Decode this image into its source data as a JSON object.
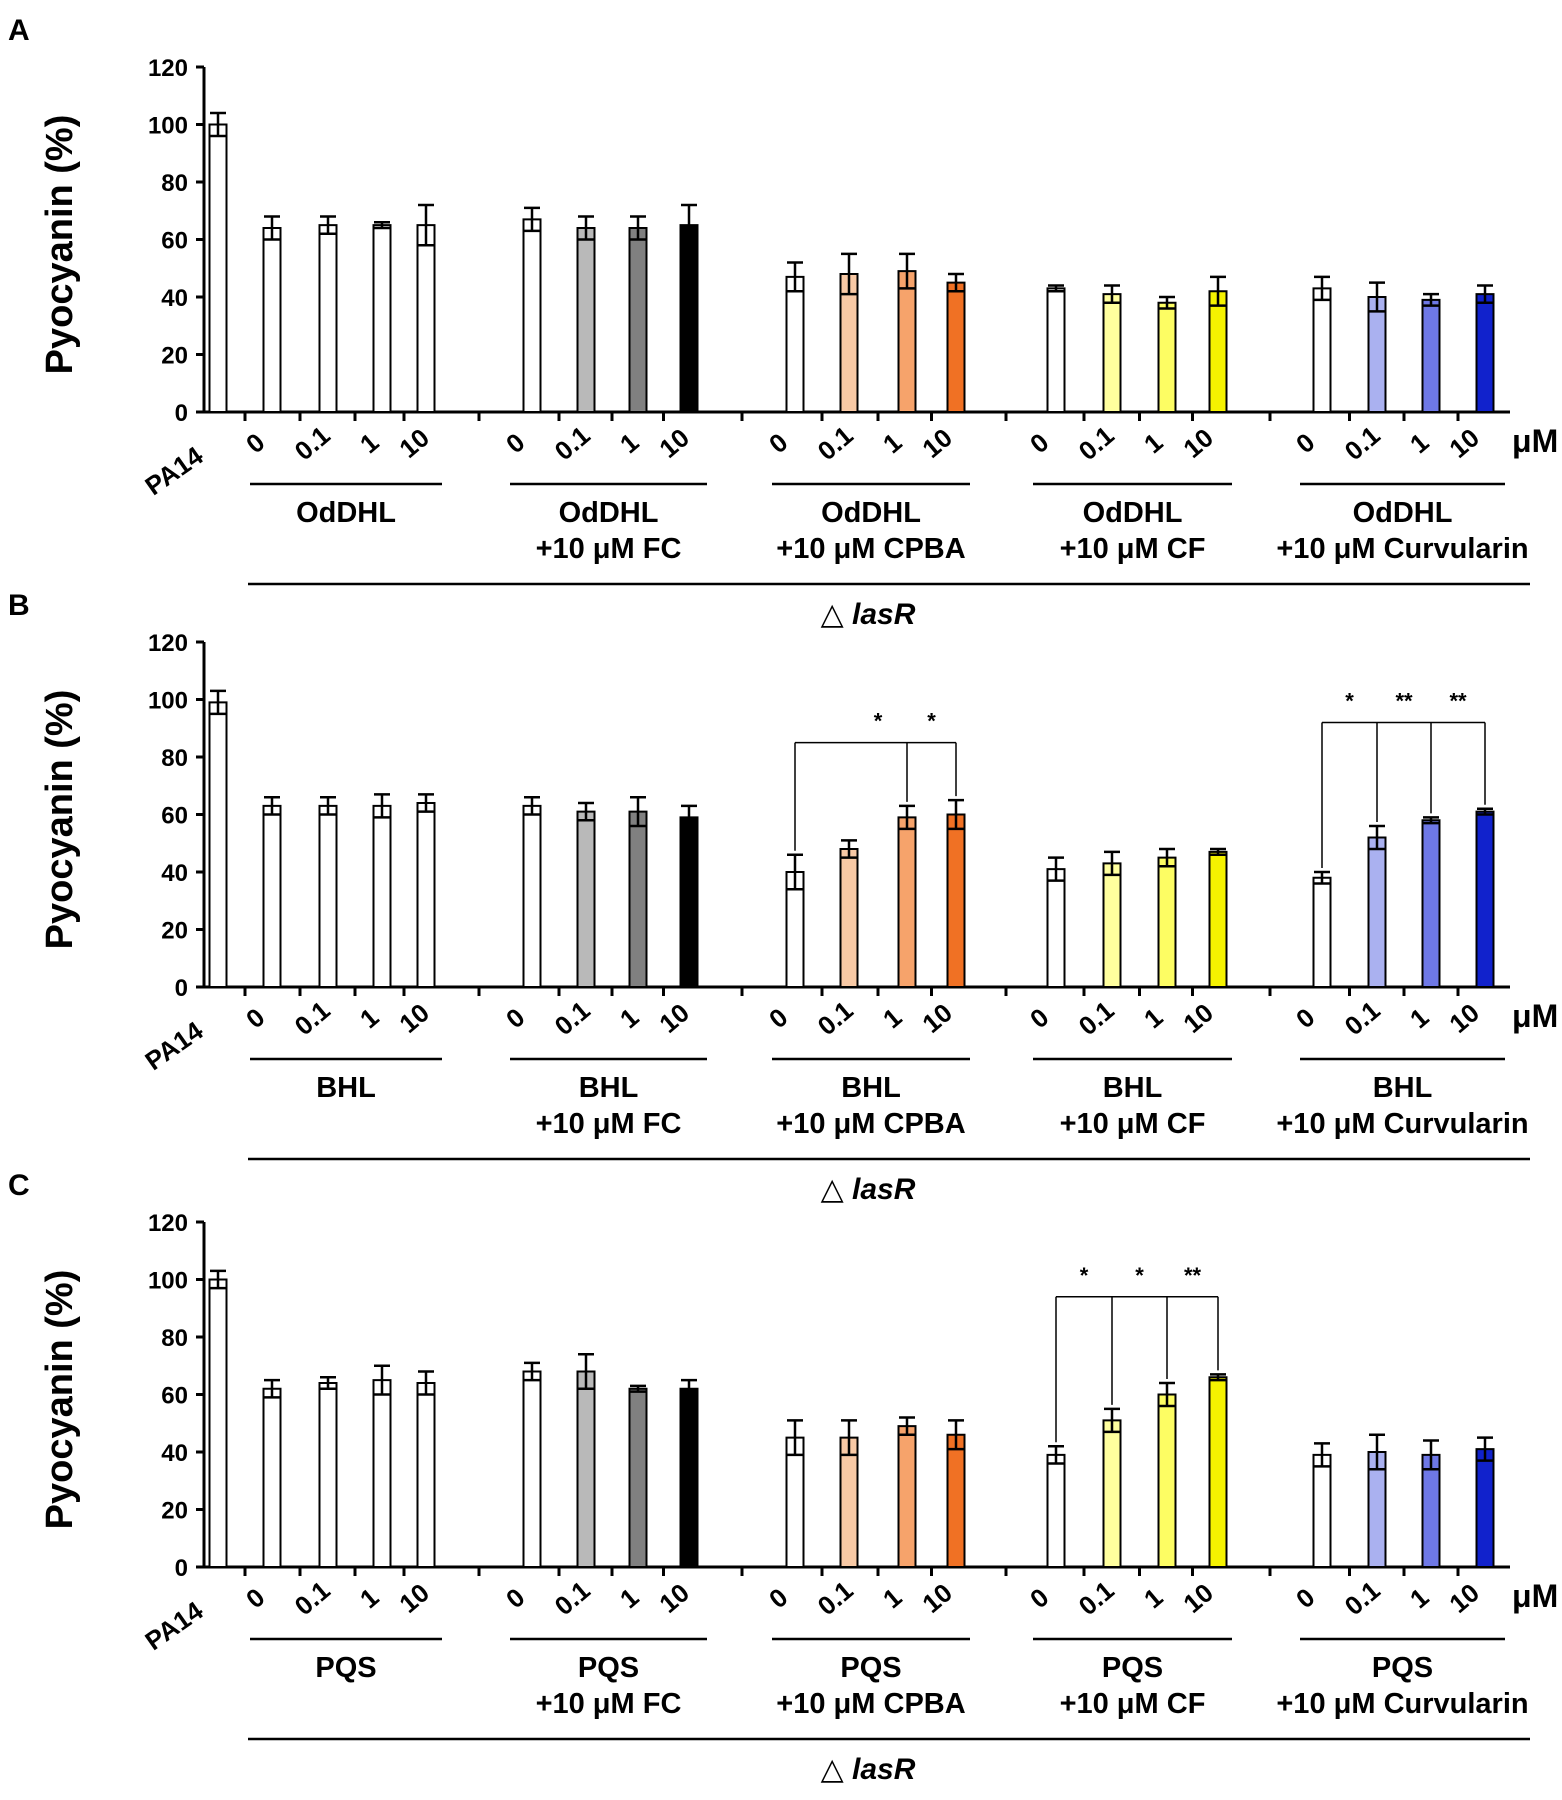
{
  "figure": {
    "y_axis_label": "Pyocyanin (%)",
    "unit_label": "μM",
    "conc_labels": [
      "0",
      "0.1",
      "1",
      "10"
    ],
    "control_label": "PA14",
    "strain_prefix": "△",
    "strain_name": "lasR",
    "colors": {
      "white": "#ffffff",
      "gray_light": "#b9b9b9",
      "gray_mid": "#808080",
      "black": "#000000",
      "orange_light": "#f8c9a5",
      "orange_mid": "#f6a36b",
      "orange_dark": "#f07124",
      "yellow_light": "#ffff9e",
      "yellow_mid": "#fdfd63",
      "yellow_dark": "#f5f200",
      "blue_light": "#aab1f0",
      "blue_mid": "#6e78e6",
      "blue_dark": "#1122cc"
    }
  },
  "chart_data": [
    {
      "panel": "A",
      "type": "bar",
      "ylabel": "Pyocyanin (%)",
      "ylim": [
        0,
        120
      ],
      "yticks": [
        "0",
        "20",
        "40",
        "60",
        "80",
        "100",
        "120"
      ],
      "autoinducer": "OdDHL",
      "groups": [
        {
          "line1": "OdDHL",
          "line2": ""
        },
        {
          "line1": "OdDHL",
          "line2": "+10 μM FC"
        },
        {
          "line1": "OdDHL",
          "line2": "+10 μM CPBA"
        },
        {
          "line1": "OdDHL",
          "line2": "+10 μM CF"
        },
        {
          "line1": "OdDHL",
          "line2": "+10 μM Curvularin"
        }
      ],
      "control": {
        "label": "PA14",
        "value": 100,
        "error": 4
      },
      "series": [
        {
          "name": "OdDHL",
          "colors": [
            "white",
            "white",
            "white",
            "white"
          ],
          "values": [
            64,
            65,
            65,
            65
          ],
          "errors": [
            4,
            3,
            1,
            7
          ]
        },
        {
          "name": "OdDHL +10 μM FC",
          "colors": [
            "white",
            "gray_light",
            "gray_mid",
            "black"
          ],
          "values": [
            67,
            64,
            64,
            65
          ],
          "errors": [
            4,
            4,
            4,
            7
          ]
        },
        {
          "name": "OdDHL +10 μM CPBA",
          "colors": [
            "white",
            "orange_light",
            "orange_mid",
            "orange_dark"
          ],
          "values": [
            47,
            48,
            49,
            45
          ],
          "errors": [
            5,
            7,
            6,
            3
          ]
        },
        {
          "name": "OdDHL +10 μM CF",
          "colors": [
            "white",
            "yellow_light",
            "yellow_mid",
            "yellow_dark"
          ],
          "values": [
            43,
            41,
            38,
            42
          ],
          "errors": [
            1,
            3,
            2,
            5
          ]
        },
        {
          "name": "OdDHL +10 μM Curvularin",
          "colors": [
            "white",
            "blue_light",
            "blue_mid",
            "blue_dark"
          ],
          "values": [
            43,
            40,
            39,
            41
          ],
          "errors": [
            4,
            5,
            2,
            3
          ]
        }
      ],
      "significance": []
    },
    {
      "panel": "B",
      "type": "bar",
      "ylabel": "Pyocyanin (%)",
      "ylim": [
        0,
        120
      ],
      "yticks": [
        "0",
        "20",
        "40",
        "60",
        "80",
        "100",
        "120"
      ],
      "autoinducer": "BHL",
      "groups": [
        {
          "line1": "BHL",
          "line2": ""
        },
        {
          "line1": "BHL",
          "line2": "+10 μM FC"
        },
        {
          "line1": "BHL",
          "line2": "+10 μM CPBA"
        },
        {
          "line1": "BHL",
          "line2": "+10 μM CF"
        },
        {
          "line1": "BHL",
          "line2": "+10 μM Curvularin"
        }
      ],
      "control": {
        "label": "PA14",
        "value": 99,
        "error": 4
      },
      "series": [
        {
          "name": "BHL",
          "colors": [
            "white",
            "white",
            "white",
            "white"
          ],
          "values": [
            63,
            63,
            63,
            64
          ],
          "errors": [
            3,
            3,
            4,
            3
          ]
        },
        {
          "name": "BHL +10 μM FC",
          "colors": [
            "white",
            "gray_light",
            "gray_mid",
            "black"
          ],
          "values": [
            63,
            61,
            61,
            59
          ],
          "errors": [
            3,
            3,
            5,
            4
          ]
        },
        {
          "name": "BHL +10 μM CPBA",
          "colors": [
            "white",
            "orange_light",
            "orange_mid",
            "orange_dark"
          ],
          "values": [
            40,
            48,
            59,
            60
          ],
          "errors": [
            6,
            3,
            4,
            5
          ]
        },
        {
          "name": "BHL +10 μM CF",
          "colors": [
            "white",
            "yellow_light",
            "yellow_mid",
            "yellow_dark"
          ],
          "values": [
            41,
            43,
            45,
            47
          ],
          "errors": [
            4,
            4,
            3,
            1
          ]
        },
        {
          "name": "BHL +10 μM Curvularin",
          "colors": [
            "white",
            "blue_light",
            "blue_mid",
            "blue_dark"
          ],
          "values": [
            38,
            52,
            58,
            61
          ],
          "errors": [
            2,
            4,
            1,
            1
          ]
        }
      ],
      "significance": [
        {
          "group": 2,
          "from": 0,
          "targets": [
            2,
            3
          ],
          "labels": [
            "*",
            "*"
          ],
          "bracket_y": 85
        },
        {
          "group": 4,
          "from": 0,
          "targets": [
            1,
            2,
            3
          ],
          "labels": [
            "*",
            "**",
            "**"
          ],
          "bracket_y": 92
        }
      ]
    },
    {
      "panel": "C",
      "type": "bar",
      "ylabel": "Pyocyanin (%)",
      "ylim": [
        0,
        120
      ],
      "yticks": [
        "0",
        "20",
        "40",
        "60",
        "80",
        "100",
        "120"
      ],
      "autoinducer": "PQS",
      "groups": [
        {
          "line1": "PQS",
          "line2": ""
        },
        {
          "line1": "PQS",
          "line2": "+10 μM FC"
        },
        {
          "line1": "PQS",
          "line2": "+10 μM CPBA"
        },
        {
          "line1": "PQS",
          "line2": "+10 μM CF"
        },
        {
          "line1": "PQS",
          "line2": "+10 μM Curvularin"
        }
      ],
      "control": {
        "label": "PA14",
        "value": 100,
        "error": 3
      },
      "series": [
        {
          "name": "PQS",
          "colors": [
            "white",
            "white",
            "white",
            "white"
          ],
          "values": [
            62,
            64,
            65,
            64
          ],
          "errors": [
            3,
            2,
            5,
            4
          ]
        },
        {
          "name": "PQS +10 μM FC",
          "colors": [
            "white",
            "gray_light",
            "gray_mid",
            "black"
          ],
          "values": [
            68,
            68,
            62,
            62
          ],
          "errors": [
            3,
            6,
            1,
            3
          ]
        },
        {
          "name": "PQS +10 μM CPBA",
          "colors": [
            "white",
            "orange_light",
            "orange_mid",
            "orange_dark"
          ],
          "values": [
            45,
            45,
            49,
            46
          ],
          "errors": [
            6,
            6,
            3,
            5
          ]
        },
        {
          "name": "PQS +10 μM CF",
          "colors": [
            "white",
            "yellow_light",
            "yellow_mid",
            "yellow_dark"
          ],
          "values": [
            39,
            51,
            60,
            66
          ],
          "errors": [
            3,
            4,
            4,
            1
          ]
        },
        {
          "name": "PQS +10 μM Curvularin",
          "colors": [
            "white",
            "blue_light",
            "blue_mid",
            "blue_dark"
          ],
          "values": [
            39,
            40,
            39,
            41
          ],
          "errors": [
            4,
            6,
            5,
            4
          ]
        }
      ],
      "significance": [
        {
          "group": 3,
          "from": 0,
          "targets": [
            1,
            2,
            3
          ],
          "labels": [
            "*",
            "*",
            "**"
          ],
          "bracket_y": 94
        }
      ]
    }
  ]
}
